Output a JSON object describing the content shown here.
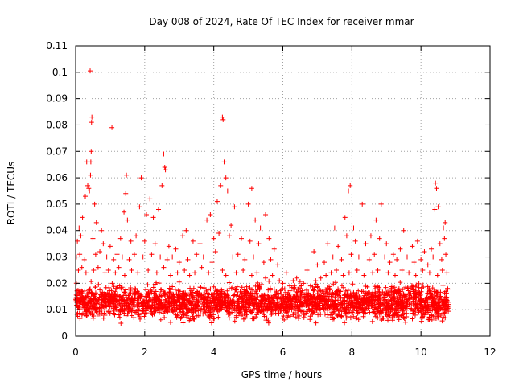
{
  "chart_data": {
    "type": "scatter",
    "title": "Day 008 of 2024, Rate Of TEC Index for receiver mmar",
    "xlabel": "GPS time / hours",
    "ylabel": "ROTI / TECUs",
    "xlim": [
      0,
      12
    ],
    "ylim": [
      0,
      0.11
    ],
    "xticks": [
      0,
      2,
      4,
      6,
      8,
      10,
      12
    ],
    "xtick_labels": [
      "0",
      "2",
      "4",
      "6",
      "8",
      "10",
      "12"
    ],
    "yticks": [
      0,
      0.01,
      0.02,
      0.03,
      0.04,
      0.05,
      0.06,
      0.07,
      0.08,
      0.09,
      0.1,
      0.11
    ],
    "ytick_labels": [
      "0",
      "0.01",
      "0.02",
      "0.03",
      "0.04",
      "0.05",
      "0.06",
      "0.07",
      "0.08",
      "0.09",
      "0.1",
      "0.11"
    ],
    "grid": true,
    "marker": "+",
    "color": "#ff0000",
    "x_range_of_data": [
      0.0,
      10.8
    ],
    "series": [
      {
        "name": "ROTI",
        "points": [
          [
            0.42,
            0.1005
          ],
          [
            0.47,
            0.083
          ],
          [
            0.46,
            0.081
          ],
          [
            1.05,
            0.079
          ],
          [
            4.25,
            0.083
          ],
          [
            4.27,
            0.082
          ],
          [
            0.45,
            0.07
          ],
          [
            2.55,
            0.069
          ],
          [
            0.32,
            0.066
          ],
          [
            0.44,
            0.066
          ],
          [
            4.3,
            0.066
          ],
          [
            2.58,
            0.064
          ],
          [
            0.43,
            0.061
          ],
          [
            1.47,
            0.061
          ],
          [
            2.6,
            0.063
          ],
          [
            4.35,
            0.06
          ],
          [
            1.9,
            0.06
          ],
          [
            10.42,
            0.058
          ],
          [
            0.35,
            0.057
          ],
          [
            0.38,
            0.056
          ],
          [
            0.4,
            0.055
          ],
          [
            1.45,
            0.054
          ],
          [
            2.5,
            0.057
          ],
          [
            4.2,
            0.057
          ],
          [
            4.4,
            0.055
          ],
          [
            5.1,
            0.056
          ],
          [
            7.95,
            0.057
          ],
          [
            10.45,
            0.056
          ],
          [
            0.28,
            0.053
          ],
          [
            0.55,
            0.05
          ],
          [
            2.15,
            0.052
          ],
          [
            2.05,
            0.046
          ],
          [
            1.85,
            0.049
          ],
          [
            1.4,
            0.047
          ],
          [
            2.4,
            0.048
          ],
          [
            4.1,
            0.051
          ],
          [
            4.6,
            0.049
          ],
          [
            5.0,
            0.05
          ],
          [
            5.5,
            0.046
          ],
          [
            7.9,
            0.055
          ],
          [
            8.3,
            0.05
          ],
          [
            8.85,
            0.05
          ],
          [
            10.5,
            0.049
          ],
          [
            10.4,
            0.048
          ],
          [
            0.1,
            0.041
          ],
          [
            0.2,
            0.045
          ],
          [
            0.6,
            0.043
          ],
          [
            0.75,
            0.04
          ],
          [
            1.5,
            0.044
          ],
          [
            2.25,
            0.045
          ],
          [
            3.2,
            0.04
          ],
          [
            3.8,
            0.044
          ],
          [
            3.9,
            0.046
          ],
          [
            4.5,
            0.042
          ],
          [
            5.2,
            0.044
          ],
          [
            5.35,
            0.041
          ],
          [
            7.5,
            0.041
          ],
          [
            7.8,
            0.045
          ],
          [
            8.05,
            0.041
          ],
          [
            8.7,
            0.044
          ],
          [
            9.5,
            0.04
          ],
          [
            10.65,
            0.041
          ],
          [
            10.7,
            0.043
          ],
          [
            0.05,
            0.036
          ],
          [
            0.15,
            0.038
          ],
          [
            0.5,
            0.037
          ],
          [
            0.8,
            0.035
          ],
          [
            1.0,
            0.034
          ],
          [
            1.3,
            0.037
          ],
          [
            1.6,
            0.036
          ],
          [
            1.75,
            0.038
          ],
          [
            2.0,
            0.036
          ],
          [
            2.3,
            0.035
          ],
          [
            2.7,
            0.034
          ],
          [
            2.9,
            0.033
          ],
          [
            3.1,
            0.038
          ],
          [
            3.4,
            0.036
          ],
          [
            3.6,
            0.035
          ],
          [
            4.0,
            0.037
          ],
          [
            4.15,
            0.039
          ],
          [
            4.45,
            0.038
          ],
          [
            4.8,
            0.037
          ],
          [
            5.05,
            0.036
          ],
          [
            5.3,
            0.035
          ],
          [
            5.6,
            0.037
          ],
          [
            5.75,
            0.033
          ],
          [
            6.9,
            0.032
          ],
          [
            7.3,
            0.035
          ],
          [
            7.6,
            0.034
          ],
          [
            7.85,
            0.038
          ],
          [
            8.1,
            0.036
          ],
          [
            8.4,
            0.035
          ],
          [
            8.55,
            0.038
          ],
          [
            8.8,
            0.037
          ],
          [
            9.0,
            0.035
          ],
          [
            9.2,
            0.031
          ],
          [
            9.4,
            0.033
          ],
          [
            9.75,
            0.034
          ],
          [
            9.9,
            0.036
          ],
          [
            10.1,
            0.032
          ],
          [
            10.3,
            0.033
          ],
          [
            10.55,
            0.035
          ],
          [
            10.68,
            0.037
          ],
          [
            0.02,
            0.03
          ],
          [
            0.12,
            0.031
          ],
          [
            0.25,
            0.029
          ],
          [
            0.58,
            0.031
          ],
          [
            0.7,
            0.032
          ],
          [
            0.9,
            0.03
          ],
          [
            1.1,
            0.029
          ],
          [
            1.2,
            0.031
          ],
          [
            1.35,
            0.03
          ],
          [
            1.55,
            0.029
          ],
          [
            1.7,
            0.031
          ],
          [
            1.95,
            0.03
          ],
          [
            2.2,
            0.031
          ],
          [
            2.45,
            0.03
          ],
          [
            2.65,
            0.029
          ],
          [
            2.8,
            0.03
          ],
          [
            3.0,
            0.028
          ],
          [
            3.25,
            0.029
          ],
          [
            3.5,
            0.031
          ],
          [
            3.7,
            0.03
          ],
          [
            3.95,
            0.028
          ],
          [
            4.05,
            0.032
          ],
          [
            4.55,
            0.03
          ],
          [
            4.7,
            0.031
          ],
          [
            4.9,
            0.029
          ],
          [
            5.15,
            0.03
          ],
          [
            5.45,
            0.028
          ],
          [
            5.65,
            0.029
          ],
          [
            5.85,
            0.027
          ],
          [
            6.1,
            0.024
          ],
          [
            6.4,
            0.022
          ],
          [
            6.7,
            0.025
          ],
          [
            7.0,
            0.027
          ],
          [
            7.2,
            0.028
          ],
          [
            7.45,
            0.03
          ],
          [
            7.7,
            0.029
          ],
          [
            7.98,
            0.031
          ],
          [
            8.2,
            0.03
          ],
          [
            8.5,
            0.029
          ],
          [
            8.65,
            0.031
          ],
          [
            8.95,
            0.03
          ],
          [
            9.1,
            0.028
          ],
          [
            9.3,
            0.029
          ],
          [
            9.6,
            0.03
          ],
          [
            9.8,
            0.028
          ],
          [
            10.0,
            0.029
          ],
          [
            10.2,
            0.027
          ],
          [
            10.35,
            0.03
          ],
          [
            10.6,
            0.029
          ],
          [
            10.72,
            0.031
          ],
          [
            0.08,
            0.025
          ],
          [
            0.18,
            0.026
          ],
          [
            0.3,
            0.024
          ],
          [
            0.52,
            0.025
          ],
          [
            0.65,
            0.026
          ],
          [
            0.85,
            0.024
          ],
          [
            0.95,
            0.025
          ],
          [
            1.15,
            0.024
          ],
          [
            1.25,
            0.026
          ],
          [
            1.42,
            0.023
          ],
          [
            1.62,
            0.025
          ],
          [
            1.8,
            0.024
          ],
          [
            2.1,
            0.025
          ],
          [
            2.35,
            0.024
          ],
          [
            2.55,
            0.026
          ],
          [
            2.75,
            0.023
          ],
          [
            2.95,
            0.024
          ],
          [
            3.15,
            0.025
          ],
          [
            3.3,
            0.023
          ],
          [
            3.45,
            0.024
          ],
          [
            3.65,
            0.026
          ],
          [
            3.85,
            0.024
          ],
          [
            4.25,
            0.025
          ],
          [
            4.35,
            0.023
          ],
          [
            4.65,
            0.024
          ],
          [
            4.85,
            0.025
          ],
          [
            5.1,
            0.023
          ],
          [
            5.25,
            0.024
          ],
          [
            5.5,
            0.022
          ],
          [
            5.7,
            0.023
          ],
          [
            5.9,
            0.021
          ],
          [
            6.0,
            0.02
          ],
          [
            6.2,
            0.019
          ],
          [
            6.3,
            0.021
          ],
          [
            6.5,
            0.018
          ],
          [
            6.6,
            0.02
          ],
          [
            6.8,
            0.019
          ],
          [
            6.95,
            0.021
          ],
          [
            7.1,
            0.022
          ],
          [
            7.25,
            0.023
          ],
          [
            7.4,
            0.024
          ],
          [
            7.55,
            0.025
          ],
          [
            7.75,
            0.023
          ],
          [
            7.92,
            0.024
          ],
          [
            8.15,
            0.025
          ],
          [
            8.35,
            0.023
          ],
          [
            8.6,
            0.024
          ],
          [
            8.75,
            0.025
          ],
          [
            9.05,
            0.024
          ],
          [
            9.25,
            0.023
          ],
          [
            9.45,
            0.025
          ],
          [
            9.65,
            0.024
          ],
          [
            9.85,
            0.023
          ],
          [
            10.05,
            0.025
          ],
          [
            10.25,
            0.024
          ],
          [
            10.48,
            0.023
          ],
          [
            10.62,
            0.025
          ],
          [
            10.75,
            0.024
          ]
        ]
      }
    ],
    "band": {
      "description": "dense base band of points",
      "x_range": [
        0.0,
        10.8
      ],
      "y_low": 0.004,
      "y_high": 0.02,
      "typical_center": 0.01
    }
  }
}
